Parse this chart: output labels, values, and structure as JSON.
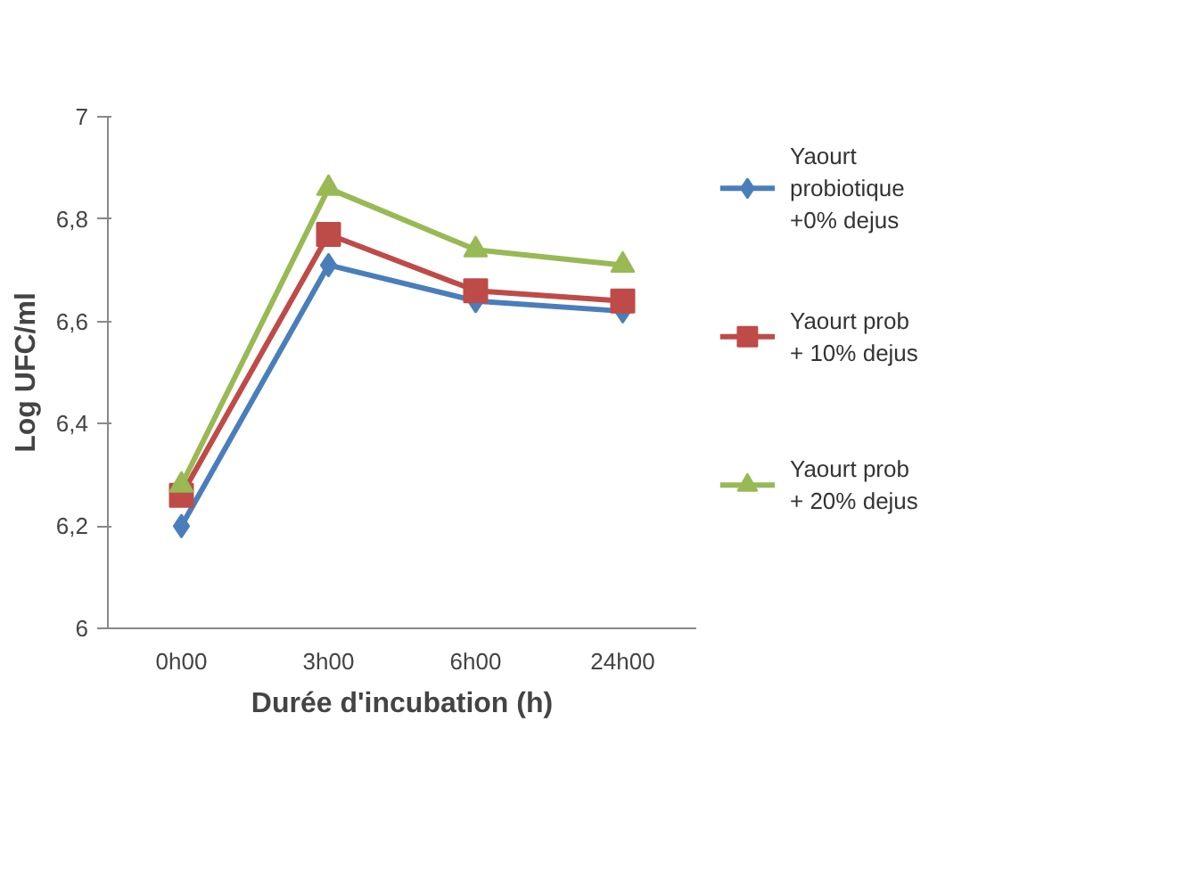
{
  "chart_data": {
    "type": "line",
    "xlabel": "Durée d'incubation (h)",
    "ylabel": "Log UFC/ml",
    "categories": [
      "0h00",
      "3h00",
      "6h00",
      "24h00"
    ],
    "ylim": [
      6,
      7
    ],
    "yticks": [
      {
        "value": 6,
        "label": "6"
      },
      {
        "value": 6.2,
        "label": "6,2"
      },
      {
        "value": 6.4,
        "label": "6,4"
      },
      {
        "value": 6.6,
        "label": "6,6"
      },
      {
        "value": 6.8,
        "label": "6,8"
      },
      {
        "value": 7,
        "label": "7"
      }
    ],
    "series": [
      {
        "name": "Yaourt probiotique +0% dejus",
        "color": "#4a7ebb",
        "marker": "diamond",
        "values": [
          6.2,
          6.71,
          6.64,
          6.62
        ]
      },
      {
        "name": "Yaourt prob + 10% dejus",
        "color": "#be4b48",
        "marker": "square",
        "values": [
          6.26,
          6.77,
          6.66,
          6.64
        ]
      },
      {
        "name": "Yaourt prob + 20% dejus",
        "color": "#98b954",
        "marker": "triangle",
        "values": [
          6.28,
          6.86,
          6.74,
          6.71
        ]
      }
    ],
    "legend": "right",
    "grid": false
  }
}
